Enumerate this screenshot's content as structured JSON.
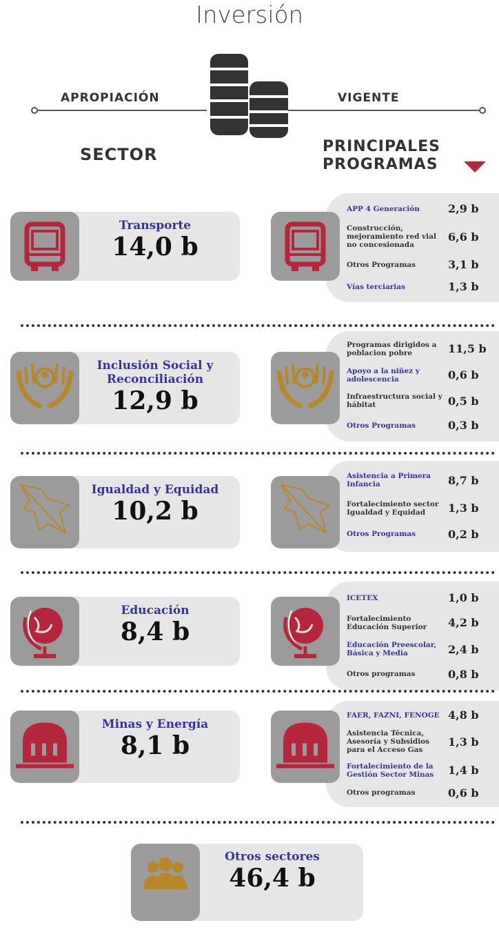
{
  "header": {
    "title": "Inversión",
    "left_label": "APROPIACIÓN",
    "right_label": "VIGENTE",
    "sector_label": "SECTOR",
    "programs_label": [
      "PRINCIPALES",
      "PROGRAMAS"
    ]
  },
  "sectors": [
    {
      "name": "Transporte",
      "value": "14,0 b",
      "color": "#b3263b",
      "programs": [
        {
          "name": "APP 4 Generación",
          "value": "2,9 b",
          "color": "#34349a"
        },
        {
          "name": "Construcción, mejoramiento red vial no concesionada",
          "value": "6,6 b",
          "color": "#333333"
        },
        {
          "name": "Otros Programas",
          "value": "3,1 b",
          "color": "#333333"
        },
        {
          "name": "Vías terciarias",
          "value": "1,3 b",
          "color": "#34349a"
        }
      ]
    },
    {
      "name": "Inclusión Social y Reconciliación",
      "value": "12,9 b",
      "color": "#b8862b",
      "programs": [
        {
          "name": "Programas dirigidos a poblacion pobre",
          "value": "11,5 b",
          "color": "#333333"
        },
        {
          "name": "Apoyo a la niñez y adolescencia",
          "value": "0,6 b",
          "color": "#34349a"
        },
        {
          "name": "Infraestructura social y hábitat",
          "value": "0,5 b",
          "color": "#333333"
        },
        {
          "name": "Otros Programas",
          "value": "0,3 b",
          "color": "#34349a"
        }
      ]
    },
    {
      "name": "Igualdad y Equidad",
      "value": "10,2 b",
      "color": "#b8862b",
      "programs": [
        {
          "name": "Asistencia a Primera Infancia",
          "value": "8,7 b",
          "color": "#34349a"
        },
        {
          "name": "Fortalecimiento sector Igualdad y Equidad",
          "value": "1,3 b",
          "color": "#333333"
        },
        {
          "name": "Otros Programas",
          "value": "0,2 b",
          "color": "#34349a"
        }
      ]
    },
    {
      "name": "Educación",
      "value": "8,4 b",
      "color": "#b3263b",
      "programs": [
        {
          "name": "ICETEX",
          "value": "1,0 b",
          "color": "#34349a"
        },
        {
          "name": "Fortalecimiento Educación Superior",
          "value": "4,2 b",
          "color": "#333333"
        },
        {
          "name": "Educación Preescolar, Básica y Media",
          "value": "2,4 b",
          "color": "#34349a"
        },
        {
          "name": "Otros programas",
          "value": "0,8 b",
          "color": "#333333"
        }
      ]
    },
    {
      "name": "Minas y Energía",
      "value": "8,1 b",
      "color": "#b3263b",
      "programs": [
        {
          "name": "FAER, FAZNI, FENOGE",
          "value": "4,8 b",
          "color": "#34349a"
        },
        {
          "name": "Asistencia Técnica, Asesoría y Subsidios para el Acceso Gas",
          "value": "1,3 b",
          "color": "#333333"
        },
        {
          "name": "Fortalecimiento de la Gestión Sector Minas",
          "value": "1,4 b",
          "color": "#34349a"
        },
        {
          "name": "Otros programas",
          "value": "0,6 b",
          "color": "#333333"
        }
      ]
    }
  ],
  "other": {
    "name": "Otros sectores",
    "value": "46,4 b",
    "color": "#b8862b"
  }
}
